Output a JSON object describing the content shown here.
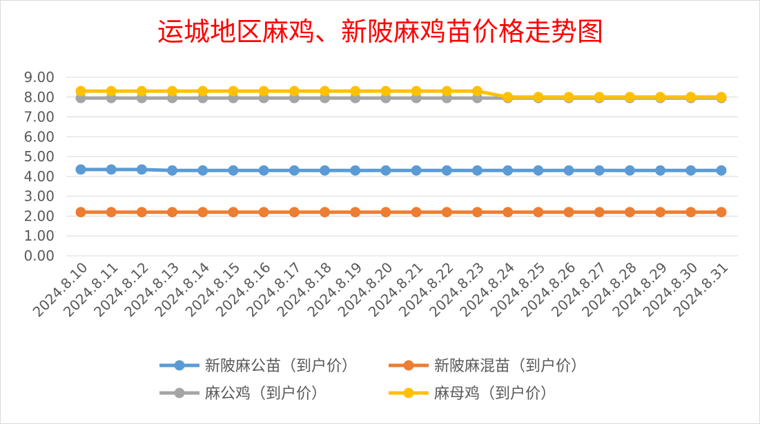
{
  "chart_data": {
    "type": "line",
    "title": "运城地区麻鸡、新陂麻鸡苗价格走势图",
    "xlabel": "",
    "ylabel": "",
    "categories": [
      "2024.8.10",
      "2024.8.11",
      "2024.8.12",
      "2024.8.13",
      "2024.8.14",
      "2024.8.15",
      "2024.8.16",
      "2024.8.17",
      "2024.8.18",
      "2024.8.19",
      "2024.8.20",
      "2024.8.21",
      "2024.8.22",
      "2024.8.23",
      "2024.8.24",
      "2024.8.25",
      "2024.8.26",
      "2024.8.27",
      "2024.8.28",
      "2024.8.29",
      "2024.8.30",
      "2024.8.31"
    ],
    "ylim": [
      0,
      9
    ],
    "yticks": [
      "0.00",
      "1.00",
      "2.00",
      "3.00",
      "4.00",
      "5.00",
      "6.00",
      "7.00",
      "8.00",
      "9.00"
    ],
    "grid": true,
    "legend_position": "bottom",
    "series": [
      {
        "name": "新陂麻公苗（到户价）",
        "color": "#5b9bd5",
        "values": [
          4.35,
          4.35,
          4.35,
          4.3,
          4.3,
          4.3,
          4.3,
          4.3,
          4.3,
          4.3,
          4.3,
          4.3,
          4.3,
          4.3,
          4.3,
          4.3,
          4.3,
          4.3,
          4.3,
          4.3,
          4.3,
          4.3
        ]
      },
      {
        "name": "新陂麻混苗（到户价）",
        "color": "#ed7d31",
        "values": [
          2.2,
          2.2,
          2.2,
          2.2,
          2.2,
          2.2,
          2.2,
          2.2,
          2.2,
          2.2,
          2.2,
          2.2,
          2.2,
          2.2,
          2.2,
          2.2,
          2.2,
          2.2,
          2.2,
          2.2,
          2.2,
          2.2
        ]
      },
      {
        "name": "麻公鸡（到户价）",
        "color": "#a5a5a5",
        "values": [
          7.95,
          7.95,
          7.95,
          7.95,
          7.95,
          7.95,
          7.95,
          7.95,
          7.95,
          7.95,
          7.95,
          7.95,
          7.95,
          7.95,
          7.95,
          7.95,
          7.95,
          7.95,
          7.95,
          7.95,
          7.95,
          7.95
        ]
      },
      {
        "name": "麻母鸡（到户价）",
        "color": "#ffc000",
        "values": [
          8.3,
          8.3,
          8.3,
          8.3,
          8.3,
          8.3,
          8.3,
          8.3,
          8.3,
          8.3,
          8.3,
          8.3,
          8.3,
          8.3,
          8.0,
          8.0,
          8.0,
          8.0,
          8.0,
          8.0,
          8.0,
          8.0
        ]
      }
    ]
  }
}
